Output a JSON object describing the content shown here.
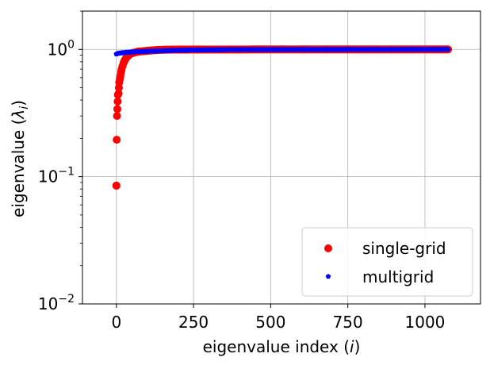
{
  "chart_data": {
    "type": "scatter",
    "title": "",
    "xlabel": "eigenvalue index (",
    "xlabel_var": "i",
    "xlabel_close": ")",
    "ylabel": "eigenvalue (",
    "ylabel_var": "λ",
    "ylabel_sub": "i",
    "ylabel_close": ")",
    "xlim": [
      -110,
      1180
    ],
    "ylim": [
      0.01,
      2.0
    ],
    "yscale": "log",
    "grid": true,
    "x_ticks": [
      {
        "value": 0,
        "label": "0"
      },
      {
        "value": 250,
        "label": "250"
      },
      {
        "value": 500,
        "label": "500"
      },
      {
        "value": 750,
        "label": "750"
      },
      {
        "value": 1000,
        "label": "1000"
      }
    ],
    "y_ticks": [
      {
        "value": 0.01,
        "base": "10",
        "exp": "−2"
      },
      {
        "value": 0.1,
        "base": "10",
        "exp": "−1"
      },
      {
        "value": 1.0,
        "base": "10",
        "exp": "0"
      }
    ],
    "legend": {
      "location": "lower-right",
      "entries": [
        "single-grid",
        "multigrid"
      ]
    },
    "series": [
      {
        "name": "single-grid",
        "color": "#ff0000",
        "marker": "circle",
        "points": [
          {
            "x": 0,
            "y": 0.085
          },
          {
            "x": 1,
            "y": 0.195
          },
          {
            "x": 2,
            "y": 0.3
          },
          {
            "x": 3,
            "y": 0.34
          },
          {
            "x": 5,
            "y": 0.44
          },
          {
            "x": 7,
            "y": 0.45
          },
          {
            "x": 9,
            "y": 0.55
          },
          {
            "x": 11,
            "y": 0.58
          },
          {
            "x": 13,
            "y": 0.62
          },
          {
            "x": 15,
            "y": 0.66
          },
          {
            "x": 17,
            "y": 0.7
          },
          {
            "x": 20,
            "y": 0.74
          },
          {
            "x": 23,
            "y": 0.78
          },
          {
            "x": 27,
            "y": 0.82
          },
          {
            "x": 32,
            "y": 0.86
          },
          {
            "x": 38,
            "y": 0.89
          },
          {
            "x": 45,
            "y": 0.92
          },
          {
            "x": 55,
            "y": 0.94
          },
          {
            "x": 70,
            "y": 0.96
          },
          {
            "x": 90,
            "y": 0.97
          },
          {
            "x": 110,
            "y": 0.98
          },
          {
            "x": 135,
            "y": 0.99
          },
          {
            "x": 160,
            "y": 0.995
          },
          {
            "x": 200,
            "y": 0.997
          },
          {
            "x": 260,
            "y": 0.998
          },
          {
            "x": 330,
            "y": 0.999
          },
          {
            "x": 400,
            "y": 0.999
          },
          {
            "x": 470,
            "y": 1.0
          },
          {
            "x": 540,
            "y": 1.0
          },
          {
            "x": 610,
            "y": 1.0
          },
          {
            "x": 680,
            "y": 1.0
          },
          {
            "x": 750,
            "y": 1.0
          },
          {
            "x": 820,
            "y": 1.0
          },
          {
            "x": 890,
            "y": 1.0
          },
          {
            "x": 960,
            "y": 1.0
          },
          {
            "x": 1030,
            "y": 1.0
          },
          {
            "x": 1075,
            "y": 1.0
          }
        ]
      },
      {
        "name": "multigrid",
        "color": "#0000ff",
        "marker": "pentagon",
        "points": [
          {
            "x": 0,
            "y": 0.92
          },
          {
            "x": 5,
            "y": 0.93
          },
          {
            "x": 12,
            "y": 0.935
          },
          {
            "x": 20,
            "y": 0.94
          },
          {
            "x": 30,
            "y": 0.945
          },
          {
            "x": 45,
            "y": 0.95
          },
          {
            "x": 60,
            "y": 0.955
          },
          {
            "x": 80,
            "y": 0.96
          },
          {
            "x": 100,
            "y": 0.965
          },
          {
            "x": 125,
            "y": 0.97
          },
          {
            "x": 150,
            "y": 0.975
          },
          {
            "x": 180,
            "y": 0.98
          },
          {
            "x": 220,
            "y": 0.985
          },
          {
            "x": 270,
            "y": 0.99
          },
          {
            "x": 330,
            "y": 0.993
          },
          {
            "x": 400,
            "y": 0.995
          },
          {
            "x": 470,
            "y": 0.996
          },
          {
            "x": 540,
            "y": 0.997
          },
          {
            "x": 610,
            "y": 0.998
          },
          {
            "x": 680,
            "y": 0.998
          },
          {
            "x": 750,
            "y": 0.999
          },
          {
            "x": 820,
            "y": 0.999
          },
          {
            "x": 890,
            "y": 0.999
          },
          {
            "x": 960,
            "y": 1.0
          },
          {
            "x": 1030,
            "y": 1.0
          },
          {
            "x": 1075,
            "y": 1.0
          }
        ]
      }
    ]
  }
}
